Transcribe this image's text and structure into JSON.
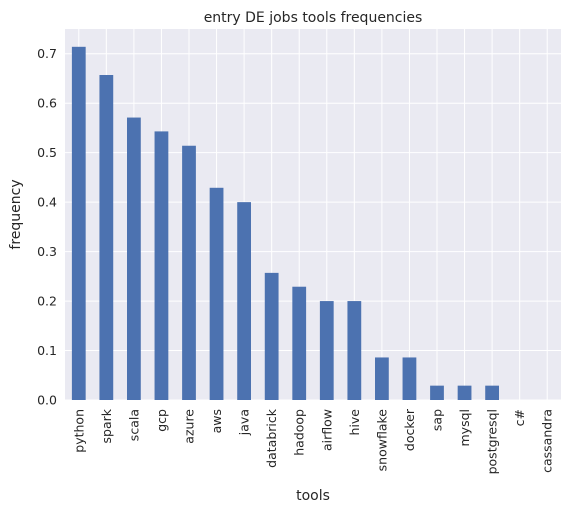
{
  "chart_data": {
    "type": "bar",
    "title": "entry DE jobs tools frequencies",
    "xlabel": "tools",
    "ylabel": "frequency",
    "categories": [
      "python",
      "spark",
      "scala",
      "gcp",
      "azure",
      "aws",
      "java",
      "databrick",
      "hadoop",
      "airflow",
      "hive",
      "snowflake",
      "docker",
      "sap",
      "mysql",
      "postgresql",
      "c#",
      "cassandra"
    ],
    "values": [
      0.714,
      0.657,
      0.571,
      0.543,
      0.514,
      0.429,
      0.4,
      0.257,
      0.229,
      0.2,
      0.2,
      0.086,
      0.086,
      0.029,
      0.029,
      0.029,
      0.0,
      0.0
    ],
    "ylim": [
      0,
      0.75
    ],
    "yticks": [
      "0.0",
      "0.1",
      "0.2",
      "0.3",
      "0.4",
      "0.5",
      "0.6",
      "0.7"
    ],
    "grid": true,
    "colors": {
      "bar": "#4C72B0",
      "plot_bg": "#EAEAF2",
      "grid": "#FFFFFF",
      "text": "#262626"
    }
  }
}
